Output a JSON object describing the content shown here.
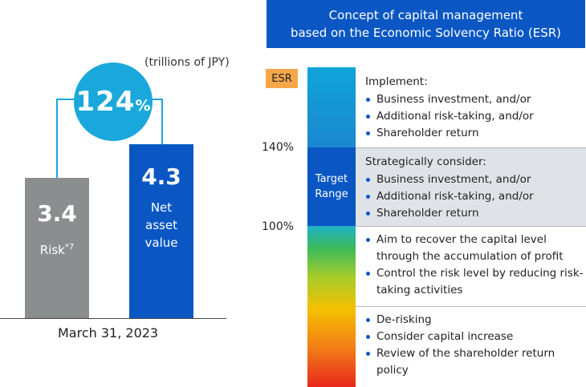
{
  "unit": "(trillions of JPY)",
  "ratio": {
    "value": "124",
    "unit": "%"
  },
  "bars": [
    {
      "value": "3.4",
      "label": "Risk",
      "note": "*7",
      "color": "#8b8e8f"
    },
    {
      "value": "4.3",
      "label": "Net\nasset\nvalue",
      "color": "#0a57c4"
    }
  ],
  "date": "March 31, 2023",
  "concept": {
    "line1": "Concept of capital management",
    "line2": "based on the Economic Solvency Ratio (ESR)"
  },
  "esr_label": "ESR",
  "levels": {
    "upper": "140%",
    "lower": "100%"
  },
  "target_range": {
    "line1": "Target",
    "line2": "Range"
  },
  "panels": [
    {
      "heading": "Implement:",
      "items": [
        "Business investment, and/or",
        "Additional risk-taking, and/or",
        "Shareholder return"
      ]
    },
    {
      "heading": "Strategically consider:",
      "items": [
        "Business investment, and/or",
        "Additional risk-taking, and/or",
        "Shareholder return"
      ]
    },
    {
      "items": [
        "Aim to recover the capital level through the accumulation of profit",
        "Control the risk level by reducing risk-taking activities"
      ]
    },
    {
      "items": [
        "De-risking",
        "Consider capital increase",
        "Review of the shareholder return policy"
      ]
    }
  ],
  "colors": {
    "blue": "#0a57c4",
    "cyan": "#1aa8dc",
    "gray": "#8b8e8f",
    "orange": "#f5a64a"
  }
}
